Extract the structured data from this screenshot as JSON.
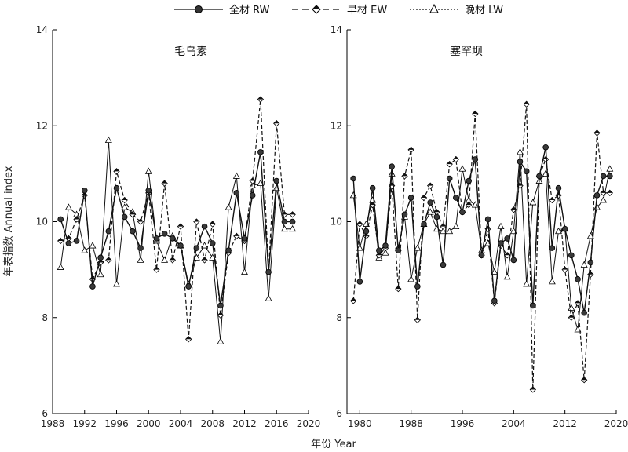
{
  "figure": {
    "ylabel": "年表指数 Annual index",
    "xlabel": "年份  Year"
  },
  "legend": [
    {
      "key": "RW",
      "label": "全材 RW",
      "style": "solid",
      "marker": "ball"
    },
    {
      "key": "EW",
      "label": "早材 EW",
      "style": "dashed",
      "marker": "diamond"
    },
    {
      "key": "LW",
      "label": "晚材 LW",
      "style": "dotted",
      "marker": "triangle"
    }
  ],
  "chart_data": [
    {
      "type": "line",
      "title": "毛乌素",
      "xlim": [
        1988,
        2020
      ],
      "ylim": [
        6,
        14
      ],
      "xticks": [
        1988,
        1992,
        1996,
        2000,
        2004,
        2008,
        2012,
        2016,
        2020
      ],
      "yticks": [
        6,
        8,
        10,
        12,
        14
      ],
      "x": [
        1989,
        1990,
        1991,
        1992,
        1993,
        1994,
        1995,
        1996,
        1997,
        1998,
        1999,
        2000,
        2001,
        2002,
        2003,
        2004,
        2005,
        2006,
        2007,
        2008,
        2009,
        2010,
        2011,
        2012,
        2013,
        2014,
        2015,
        2016,
        2017,
        2018
      ],
      "series": [
        {
          "name": "全材 RW",
          "key": "RW",
          "values": [
            10.05,
            9.55,
            9.6,
            10.65,
            8.65,
            9.25,
            9.8,
            10.7,
            10.1,
            9.8,
            9.45,
            10.65,
            9.65,
            9.75,
            9.65,
            9.5,
            8.65,
            9.45,
            9.9,
            9.55,
            8.25,
            9.4,
            10.6,
            9.65,
            10.55,
            11.45,
            8.95,
            10.85,
            10.0,
            10.0
          ]
        },
        {
          "name": "早材 EW",
          "key": "EW",
          "values": [
            9.6,
            9.65,
            10.05,
            10.55,
            8.8,
            9.15,
            9.2,
            11.05,
            10.45,
            10.15,
            10.0,
            10.6,
            9.0,
            10.8,
            9.2,
            9.9,
            7.55,
            10.0,
            9.2,
            9.95,
            8.05,
            9.35,
            9.7,
            9.6,
            10.85,
            12.55,
            8.95,
            12.05,
            10.15,
            10.15
          ]
        },
        {
          "name": "晚材 LW",
          "key": "LW",
          "values": [
            9.05,
            10.3,
            10.15,
            9.4,
            9.5,
            8.9,
            11.7,
            8.7,
            10.3,
            10.2,
            9.2,
            11.05,
            9.6,
            9.2,
            9.7,
            9.5,
            8.7,
            9.25,
            9.5,
            9.25,
            7.5,
            10.3,
            10.95,
            8.95,
            10.75,
            10.8,
            8.4,
            10.7,
            9.85,
            9.85
          ]
        }
      ]
    },
    {
      "type": "line",
      "title": "塞罕坝",
      "xlim": [
        1978,
        2020
      ],
      "ylim": [
        6,
        14
      ],
      "xticks": [
        1980,
        1988,
        1996,
        2004,
        2012,
        2020
      ],
      "yticks": [
        6,
        8,
        10,
        12,
        14
      ],
      "x": [
        1979,
        1980,
        1981,
        1982,
        1983,
        1984,
        1985,
        1986,
        1987,
        1988,
        1989,
        1990,
        1991,
        1992,
        1993,
        1994,
        1995,
        1996,
        1997,
        1998,
        1999,
        2000,
        2001,
        2002,
        2003,
        2004,
        2005,
        2006,
        2007,
        2008,
        2009,
        2010,
        2011,
        2012,
        2013,
        2014,
        2015,
        2016,
        2017,
        2018,
        2019
      ],
      "series": [
        {
          "name": "全材 RW",
          "key": "RW",
          "values": [
            10.9,
            8.75,
            9.8,
            10.7,
            9.4,
            9.5,
            11.15,
            9.4,
            10.15,
            10.5,
            8.65,
            9.95,
            10.4,
            10.1,
            9.1,
            10.9,
            10.5,
            10.2,
            10.85,
            11.3,
            9.3,
            10.05,
            8.35,
            9.55,
            9.65,
            9.2,
            11.25,
            11.05,
            8.25,
            10.95,
            11.55,
            9.45,
            10.7,
            9.85,
            9.3,
            8.8,
            8.1,
            9.15,
            10.55,
            10.95,
            10.95
          ]
        },
        {
          "name": "早材 EW",
          "key": "EW",
          "values": [
            8.35,
            9.95,
            9.7,
            10.35,
            9.3,
            9.45,
            10.75,
            8.6,
            10.95,
            11.5,
            7.95,
            10.5,
            10.75,
            10.2,
            9.9,
            11.2,
            11.3,
            10.2,
            10.35,
            12.25,
            9.3,
            9.85,
            8.3,
            9.5,
            9.3,
            10.25,
            10.75,
            12.45,
            6.5,
            10.95,
            11.3,
            10.45,
            10.55,
            9.0,
            8.0,
            8.3,
            6.7,
            8.9,
            11.85,
            10.6,
            10.6
          ]
        },
        {
          "name": "晚材 LW",
          "key": "LW",
          "values": [
            10.55,
            9.45,
            9.95,
            10.45,
            9.25,
            9.35,
            11.0,
            9.45,
            10.1,
            8.8,
            9.45,
            9.95,
            10.2,
            9.85,
            9.8,
            9.8,
            9.9,
            11.1,
            10.45,
            10.35,
            9.4,
            9.55,
            8.95,
            9.9,
            8.85,
            9.8,
            11.45,
            8.7,
            10.4,
            10.85,
            11.0,
            8.75,
            9.8,
            9.85,
            8.2,
            7.75,
            9.1,
            9.7,
            10.3,
            10.45,
            11.1
          ]
        }
      ]
    }
  ]
}
